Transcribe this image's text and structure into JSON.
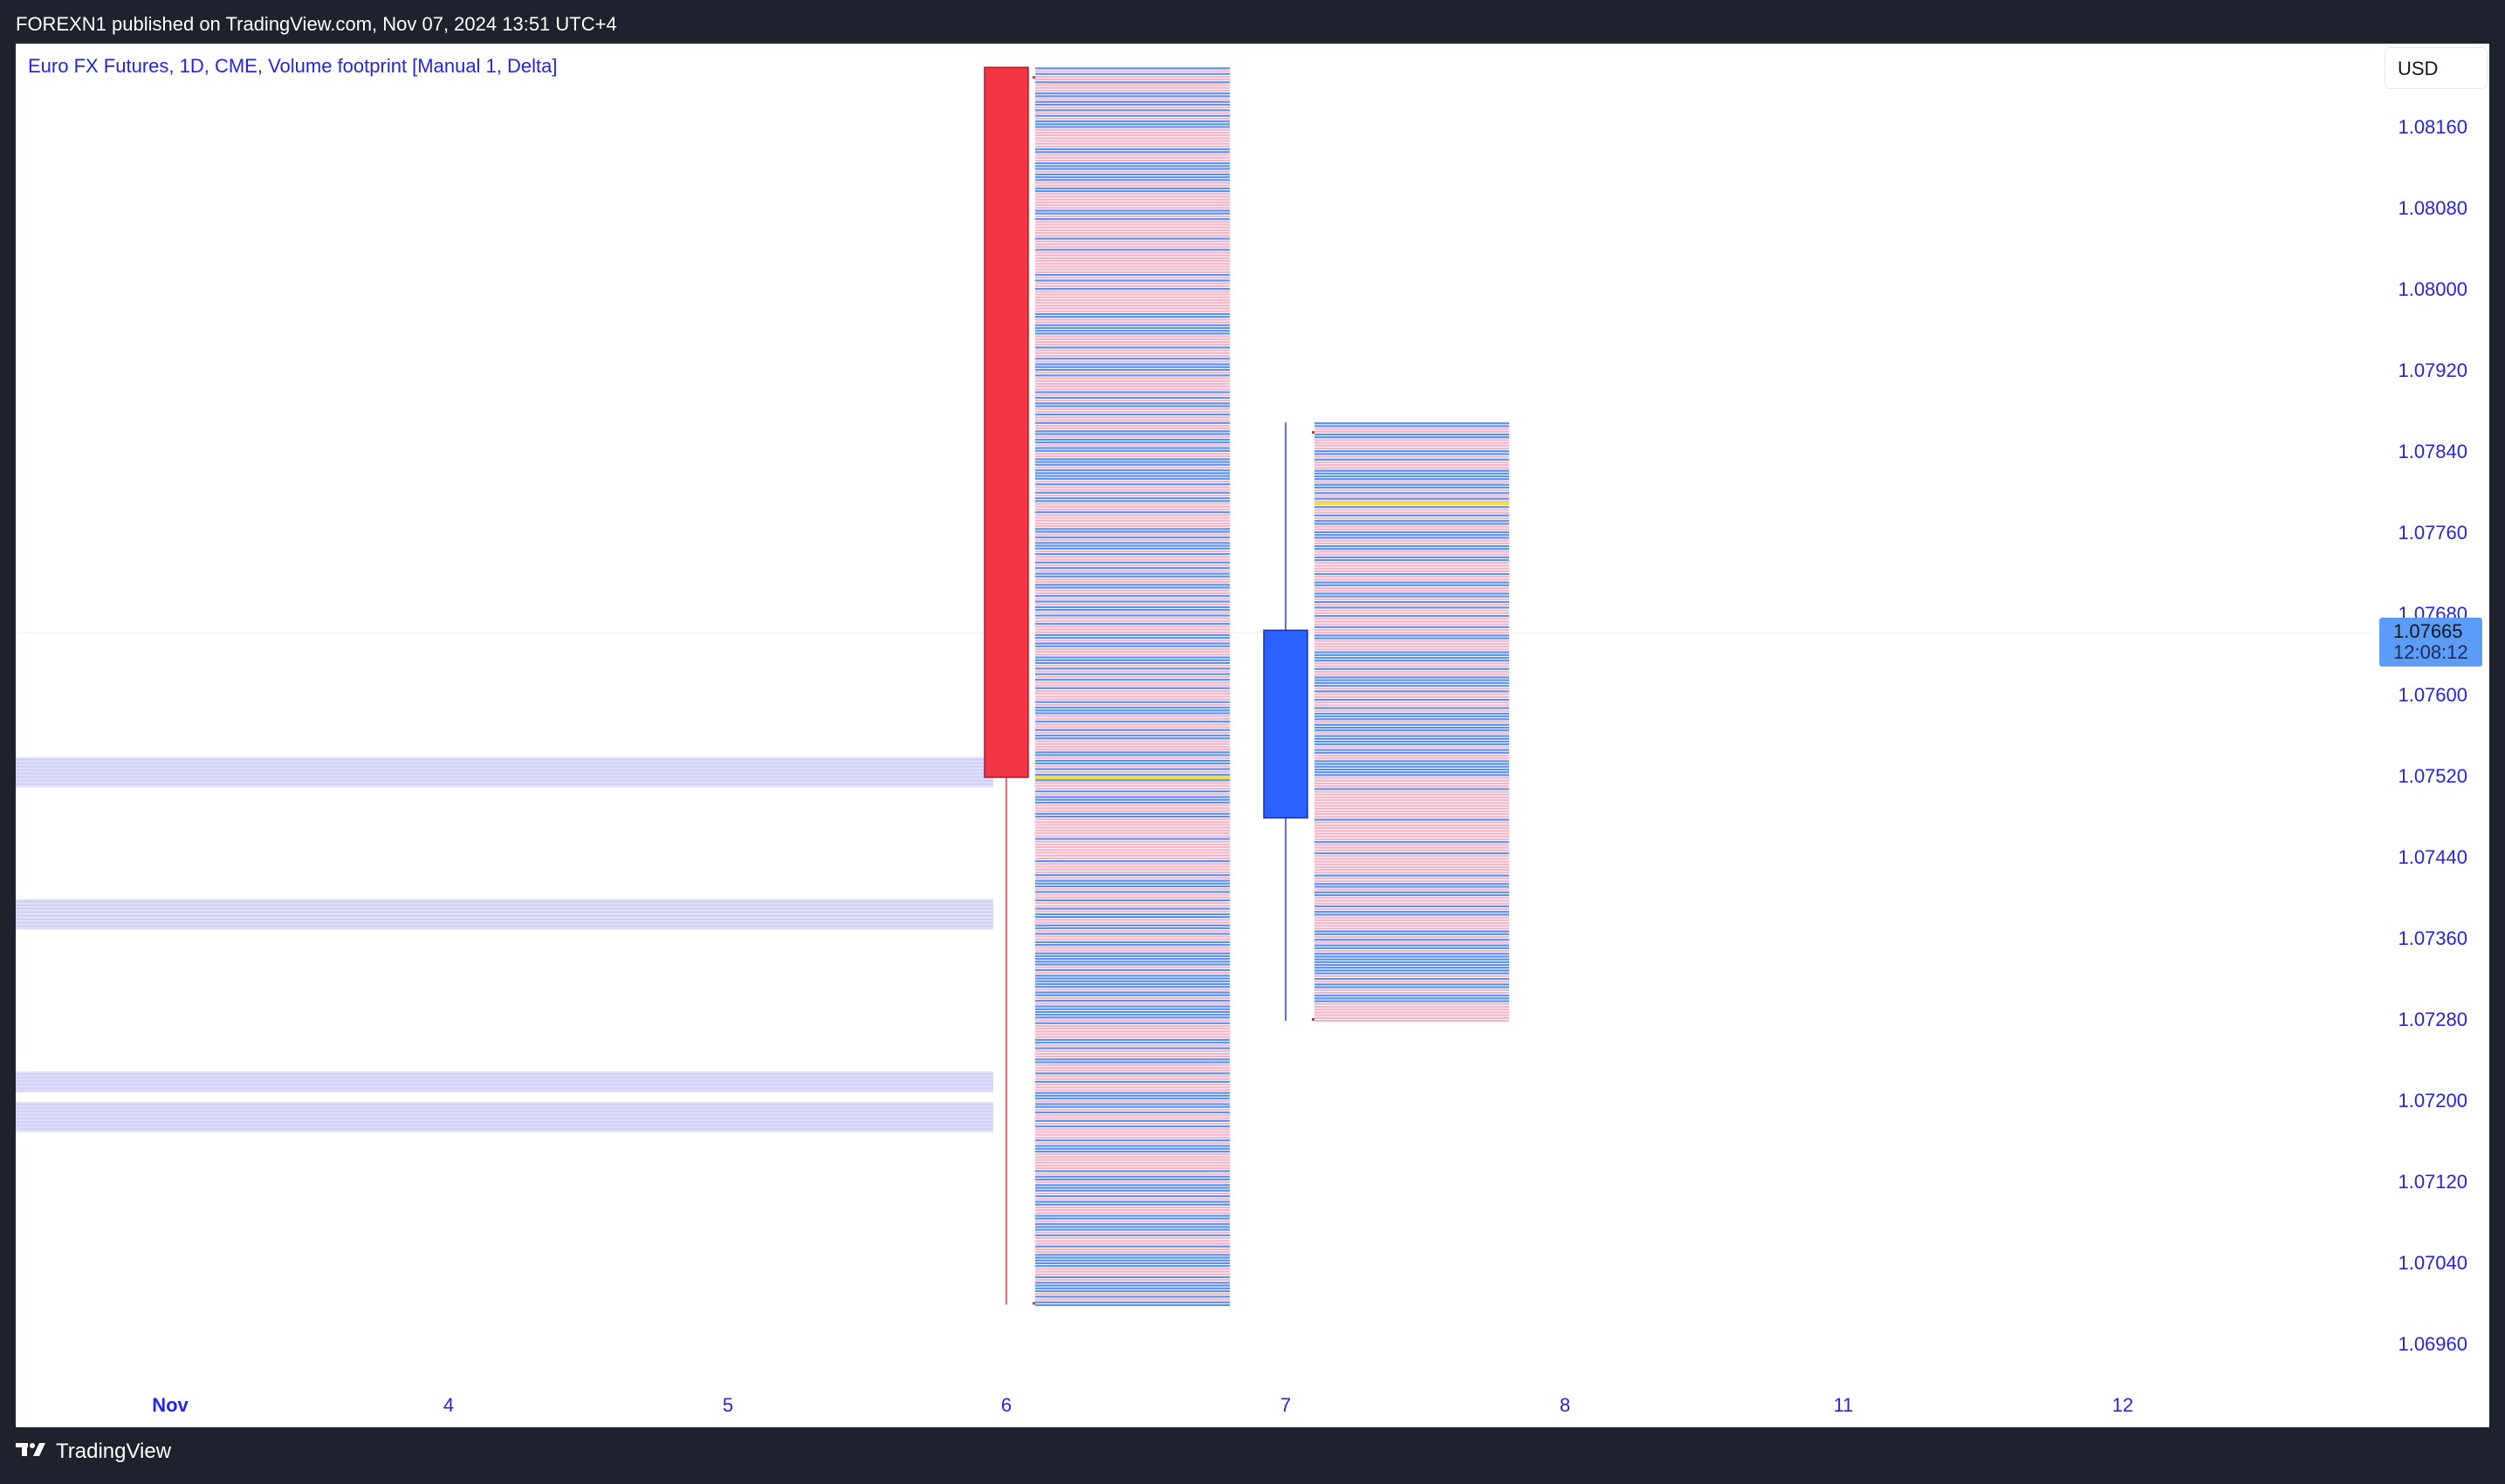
{
  "header": {
    "published_text": "FOREXN1 published on TradingView.com, Nov 07, 2024 13:51 UTC+4"
  },
  "chart": {
    "legend_title": "Euro FX Futures, 1D, CME, Volume footprint [Manual 1, Delta]",
    "currency": "USD",
    "price_axis": [
      "1.08160",
      "1.08080",
      "1.08000",
      "1.07920",
      "1.07840",
      "1.07760",
      "1.07680",
      "1.07600",
      "1.07520",
      "1.07440",
      "1.07360",
      "1.07280",
      "1.07200",
      "1.07120",
      "1.07040",
      "1.06960"
    ],
    "time_axis": [
      "Nov",
      "4",
      "5",
      "6",
      "7",
      "8",
      "11",
      "12"
    ],
    "last_price": "1.07665",
    "countdown": "12:08:12",
    "colors": {
      "up_candle": "#2962ff",
      "down_candle": "#f23645",
      "positive_delta": "#5b8ff0",
      "negative_delta": "#f7b3c6",
      "poc": "#f5e03a",
      "axis_text": "#2424e6"
    }
  },
  "chart_data": {
    "type": "candlestick",
    "candles": [
      {
        "date": "6",
        "open": 1.0822,
        "high": 1.0822,
        "low": 1.07,
        "close": 1.0752,
        "poc": 1.0752
      },
      {
        "date": "7",
        "open": 1.0748,
        "high": 1.0787,
        "low": 1.0728,
        "close": 1.07665,
        "poc": 1.0779
      }
    ],
    "volume_profile_zones": [
      {
        "from": 1.0751,
        "to": 1.0754
      },
      {
        "from": 1.0737,
        "to": 1.074
      },
      {
        "from": 1.0721,
        "to": 1.0723
      },
      {
        "from": 1.0717,
        "to": 1.072
      }
    ]
  },
  "footer": {
    "brand": "TradingView"
  }
}
